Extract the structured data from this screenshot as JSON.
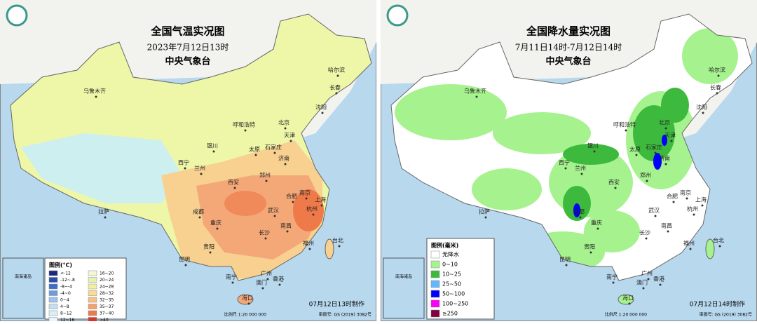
{
  "left": {
    "title": "全国气温实况图",
    "subtitle": "2023年7月12日13时",
    "agency": "中央气象台",
    "legend_title": "图例(℃)",
    "legend": [
      {
        "label": "<-12",
        "color": "#1a2a7a"
      },
      {
        "label": "-12~-8",
        "color": "#2a4fa8"
      },
      {
        "label": "-8~-4",
        "color": "#3d6fc8"
      },
      {
        "label": "-4~0",
        "color": "#6a9de0"
      },
      {
        "label": "0~4",
        "color": "#9cc3ea"
      },
      {
        "label": "4~8",
        "color": "#c4dff2"
      },
      {
        "label": "8~12",
        "color": "#d9eef7"
      },
      {
        "label": "12~16",
        "color": "#eaf6fb"
      },
      {
        "label": "16~20",
        "color": "#f0f8d8"
      },
      {
        "label": "20~24",
        "color": "#e6f2b0"
      },
      {
        "label": "24~28",
        "color": "#f2f0a0"
      },
      {
        "label": "28~32",
        "color": "#f8dc90"
      },
      {
        "label": "32~35",
        "color": "#f6c08a"
      },
      {
        "label": "35~37",
        "color": "#f4a070"
      },
      {
        "label": "37~40",
        "color": "#ee7a4a"
      },
      {
        "label": ">40",
        "color": "#d43a2a"
      }
    ],
    "made": "07月12日13时制作",
    "scale": "比例尺 1:20 000 000",
    "approval": "审图号: GS (2019) 3082号",
    "inset_label": "南海诸岛",
    "cities": [
      "乌鲁木齐",
      "哈尔滨",
      "长春",
      "沈阳",
      "北京",
      "天津",
      "呼和浩特",
      "银川",
      "太原",
      "石家庄",
      "济南",
      "西宁",
      "兰州",
      "郑州",
      "西安",
      "合肥",
      "南京",
      "上海",
      "拉萨",
      "成都",
      "武汉",
      "杭州",
      "重庆",
      "长沙",
      "南昌",
      "福州",
      "台北",
      "贵阳",
      "昆明",
      "广州",
      "南宁",
      "澳门",
      "香港",
      "海口"
    ]
  },
  "right": {
    "title": "全国降水量实况图",
    "subtitle": "7月11日14时-7月12日14时",
    "agency": "中央气象台",
    "legend_title": "图例(毫米)",
    "legend": [
      {
        "label": "无降水",
        "color": "#ffffff"
      },
      {
        "label": "0~10",
        "color": "#a6f28f"
      },
      {
        "label": "10~25",
        "color": "#3dba3d"
      },
      {
        "label": "25~50",
        "color": "#61b8ff"
      },
      {
        "label": "50~100",
        "color": "#0000ff"
      },
      {
        "label": "100~250",
        "color": "#fa00fa"
      },
      {
        "label": "≥250",
        "color": "#800040"
      }
    ],
    "made": "07月12日14时制作",
    "scale": "比例尺 1:20 000 000",
    "approval": "审图号: GS (2019) 3082号",
    "inset_label": "南海诸岛",
    "cities": [
      "乌鲁木齐",
      "哈尔滨",
      "长春",
      "沈阳",
      "北京",
      "天津",
      "呼和浩特",
      "银川",
      "太原",
      "石家庄",
      "济南",
      "西宁",
      "兰州",
      "郑州",
      "西安",
      "合肥",
      "南京",
      "上海",
      "拉萨",
      "成都",
      "武汉",
      "杭州",
      "重庆",
      "长沙",
      "南昌",
      "福州",
      "台北",
      "贵阳",
      "昆明",
      "广州",
      "南宁",
      "澳门",
      "香港",
      "海口"
    ]
  }
}
